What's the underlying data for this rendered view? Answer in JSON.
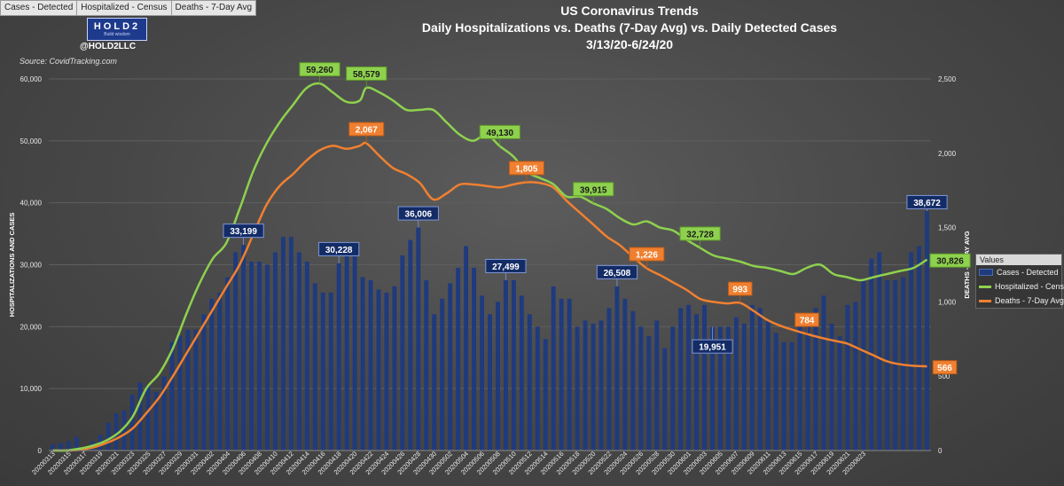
{
  "filters": [
    "Cases - Detected",
    "Hospitalized - Census",
    "Deaths - 7-Day Avg"
  ],
  "brand": {
    "logo_text": "HOLD2",
    "logo_sub": "Build wisdom",
    "handle": "@HOLD2LLC"
  },
  "source": "Source: CovidTracking.com",
  "colors": {
    "cases": "#1f3a7d",
    "hosp": "#8ed14e",
    "deaths": "#f08030",
    "grid": "#5e5e5e"
  },
  "chart_data": {
    "type": "bar+line",
    "title": [
      "US Coronavirus Trends",
      "Daily Hospitalizations vs. Deaths (7-Day Avg) vs. Daily Detected Cases",
      "3/13/20-6/24/20"
    ],
    "ylabel": "HOSPITALIZATIONS AND  CASES",
    "y2label": "DEATHS - 7-DAY AVG",
    "ylim": [
      0,
      60000
    ],
    "y2lim": [
      0,
      2500
    ],
    "yticks": [
      "0",
      "10,000",
      "20,000",
      "30,000",
      "40,000",
      "50,000",
      "60,000"
    ],
    "y2ticks": [
      "0",
      "500",
      "1,000",
      "1,500",
      "2,000",
      "2,500"
    ],
    "xtick_labels": [
      "20200313",
      "20200315",
      "20200317",
      "20200319",
      "20200321",
      "20200323",
      "20200325",
      "20200327",
      "20200329",
      "20200331",
      "20200402",
      "20200404",
      "20200406",
      "20200408",
      "20200410",
      "20200412",
      "20200414",
      "20200416",
      "20200418",
      "20200420",
      "20200422",
      "20200424",
      "20200426",
      "20200428",
      "20200430",
      "20200502",
      "20200504",
      "20200506",
      "20200508",
      "20200510",
      "20200512",
      "20200514",
      "20200516",
      "20200518",
      "20200520",
      "20200522",
      "20200524",
      "20200526",
      "20200528",
      "20200530",
      "20200601",
      "20200603",
      "20200605",
      "20200607",
      "20200609",
      "20200611",
      "20200613",
      "20200615",
      "20200617",
      "20200619",
      "20200621",
      "20200623"
    ],
    "legend_title": "Values",
    "series": [
      {
        "name": "Cases - Detected",
        "type": "bar",
        "axis": "left",
        "values": [
          1000,
          1200,
          1500,
          2200,
          300,
          1500,
          2500,
          4500,
          6000,
          6500,
          9000,
          11000,
          10500,
          9500,
          12000,
          17500,
          18500,
          19500,
          19500,
          22000,
          24500,
          25500,
          28000,
          32000,
          33199,
          30500,
          30500,
          30000,
          32000,
          34500,
          34500,
          32000,
          30500,
          27000,
          25500,
          25500,
          30228,
          31500,
          32000,
          28000,
          27500,
          26000,
          25500,
          26500,
          31500,
          34000,
          36006,
          27500,
          22000,
          24500,
          27000,
          29500,
          33000,
          29500,
          25000,
          22000,
          24000,
          27499,
          27500,
          25000,
          22000,
          20000,
          18000,
          26500,
          24500,
          24500,
          20000,
          21000,
          20500,
          21000,
          23000,
          26508,
          24500,
          22500,
          20000,
          18500,
          21000,
          16500,
          20000,
          23000,
          23500,
          22000,
          23500,
          19951,
          20000,
          20000,
          21500,
          20500,
          23500,
          23000,
          21000,
          19000,
          17500,
          17500,
          21500,
          21500,
          23000,
          25000,
          20500,
          18500,
          23500,
          24000,
          27500,
          31000,
          32000,
          27500,
          27500,
          28000,
          32000,
          33000,
          38672
        ]
      },
      {
        "name": "Hospitalized - Census",
        "type": "line",
        "axis": "left",
        "values": [
          [
            0,
            0
          ],
          [
            2,
            0
          ],
          [
            4,
            300
          ],
          [
            6,
            800
          ],
          [
            8,
            1600
          ],
          [
            10,
            3000
          ],
          [
            12,
            5500
          ],
          [
            14,
            10000
          ],
          [
            16,
            12500
          ],
          [
            18,
            16500
          ],
          [
            20,
            22000
          ],
          [
            22,
            27000
          ],
          [
            24,
            31000
          ],
          [
            26,
            33500
          ],
          [
            28,
            39000
          ],
          [
            30,
            45000
          ],
          [
            32,
            49500
          ],
          [
            34,
            53000
          ],
          [
            36,
            55800
          ],
          [
            38,
            58500
          ],
          [
            40,
            59260
          ],
          [
            42,
            57800
          ],
          [
            44,
            56300
          ],
          [
            46,
            56500
          ],
          [
            47,
            58579
          ],
          [
            49,
            57800
          ],
          [
            51,
            56500
          ],
          [
            53,
            55000
          ],
          [
            55,
            55000
          ],
          [
            57,
            55000
          ],
          [
            59,
            53000
          ],
          [
            61,
            51000
          ],
          [
            63,
            50000
          ],
          [
            65,
            51000
          ],
          [
            67,
            49130
          ],
          [
            69,
            47500
          ],
          [
            71,
            45000
          ],
          [
            73,
            44000
          ],
          [
            75,
            43000
          ],
          [
            77,
            41000
          ],
          [
            79,
            41000
          ],
          [
            81,
            39915
          ],
          [
            83,
            39000
          ],
          [
            85,
            37500
          ],
          [
            87,
            36500
          ],
          [
            89,
            37000
          ],
          [
            91,
            36000
          ],
          [
            93,
            35500
          ],
          [
            95,
            34000
          ],
          [
            97,
            32728
          ],
          [
            99,
            31500
          ],
          [
            101,
            31000
          ],
          [
            103,
            30500
          ],
          [
            105,
            29800
          ],
          [
            107,
            29500
          ],
          [
            109,
            29000
          ],
          [
            111,
            28500
          ],
          [
            113,
            29500
          ],
          [
            115,
            30000
          ],
          [
            117,
            28500
          ],
          [
            119,
            28000
          ],
          [
            121,
            27500
          ],
          [
            123,
            28000
          ],
          [
            125,
            28500
          ],
          [
            127,
            29000
          ],
          [
            129,
            29500
          ],
          [
            131,
            30826
          ]
        ]
      },
      {
        "name": "Deaths - 7-Day Avg",
        "type": "line",
        "axis": "right",
        "values": [
          [
            0,
            0
          ],
          [
            2,
            0
          ],
          [
            4,
            5
          ],
          [
            6,
            20
          ],
          [
            8,
            50
          ],
          [
            10,
            90
          ],
          [
            12,
            150
          ],
          [
            14,
            250
          ],
          [
            16,
            360
          ],
          [
            18,
            500
          ],
          [
            20,
            650
          ],
          [
            22,
            800
          ],
          [
            24,
            950
          ],
          [
            26,
            1100
          ],
          [
            28,
            1250
          ],
          [
            30,
            1450
          ],
          [
            32,
            1650
          ],
          [
            34,
            1780
          ],
          [
            36,
            1860
          ],
          [
            38,
            1950
          ],
          [
            40,
            2020
          ],
          [
            42,
            2050
          ],
          [
            44,
            2030
          ],
          [
            46,
            2050
          ],
          [
            47,
            2067
          ],
          [
            49,
            1980
          ],
          [
            51,
            1900
          ],
          [
            53,
            1860
          ],
          [
            55,
            1800
          ],
          [
            57,
            1690
          ],
          [
            59,
            1730
          ],
          [
            61,
            1790
          ],
          [
            63,
            1790
          ],
          [
            65,
            1780
          ],
          [
            67,
            1770
          ],
          [
            69,
            1790
          ],
          [
            71,
            1805
          ],
          [
            73,
            1800
          ],
          [
            75,
            1770
          ],
          [
            77,
            1680
          ],
          [
            79,
            1600
          ],
          [
            81,
            1520
          ],
          [
            83,
            1440
          ],
          [
            85,
            1380
          ],
          [
            87,
            1300
          ],
          [
            89,
            1226
          ],
          [
            91,
            1180
          ],
          [
            93,
            1130
          ],
          [
            95,
            1080
          ],
          [
            97,
            1020
          ],
          [
            99,
            1000
          ],
          [
            101,
            990
          ],
          [
            103,
            993
          ],
          [
            105,
            940
          ],
          [
            107,
            880
          ],
          [
            109,
            840
          ],
          [
            111,
            810
          ],
          [
            113,
            784
          ],
          [
            115,
            760
          ],
          [
            117,
            740
          ],
          [
            119,
            720
          ],
          [
            121,
            680
          ],
          [
            123,
            640
          ],
          [
            125,
            600
          ],
          [
            127,
            580
          ],
          [
            129,
            570
          ],
          [
            131,
            566
          ]
        ]
      }
    ],
    "annotations": [
      {
        "series": "cases",
        "label": "33,199",
        "i": 24
      },
      {
        "series": "cases",
        "label": "30,228",
        "i": 36
      },
      {
        "series": "cases",
        "label": "36,006",
        "i": 46
      },
      {
        "series": "cases",
        "label": "27,499",
        "i": 57
      },
      {
        "series": "cases",
        "label": "26,508",
        "i": 71
      },
      {
        "series": "cases",
        "label": "19,951",
        "i": 83
      },
      {
        "series": "cases",
        "label": "38,672",
        "i": 110
      },
      {
        "series": "hosp",
        "label": "59,260",
        "x": 40,
        "v": 59260
      },
      {
        "series": "hosp",
        "label": "58,579",
        "x": 47,
        "v": 58579
      },
      {
        "series": "hosp",
        "label": "49,130",
        "x": 67,
        "v": 49130
      },
      {
        "series": "hosp",
        "label": "39,915",
        "x": 81,
        "v": 39915
      },
      {
        "series": "hosp",
        "label": "32,728",
        "x": 97,
        "v": 32728
      },
      {
        "series": "hosp",
        "label": "30,826",
        "x": 131,
        "v": 30826
      },
      {
        "series": "deaths",
        "label": "2,067",
        "x": 47,
        "v": 2067
      },
      {
        "series": "deaths",
        "label": "1,805",
        "x": 71,
        "v": 1805
      },
      {
        "series": "deaths",
        "label": "1,226",
        "x": 89,
        "v": 1226
      },
      {
        "series": "deaths",
        "label": "993",
        "x": 103,
        "v": 993
      },
      {
        "series": "deaths",
        "label": "784",
        "x": 113,
        "v": 784
      },
      {
        "series": "deaths",
        "label": "566",
        "x": 131,
        "v": 566
      }
    ]
  }
}
